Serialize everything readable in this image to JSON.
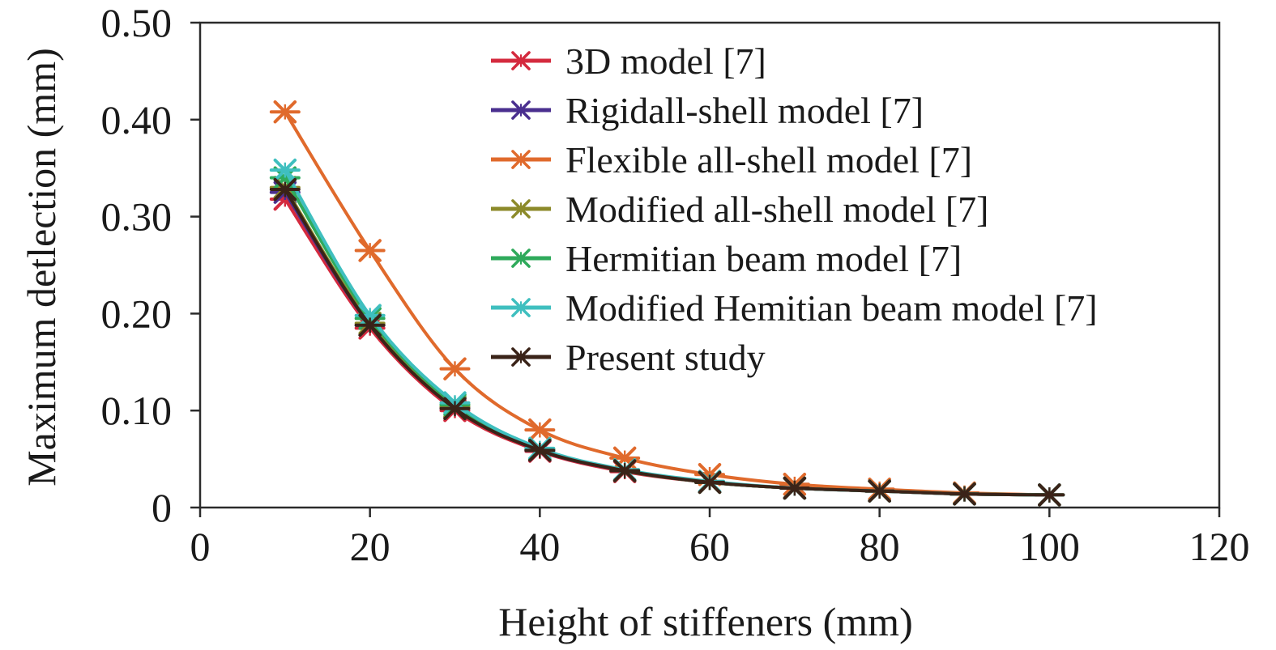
{
  "chart_data": {
    "type": "line",
    "title": "",
    "xlabel": "Height of stiffeners (mm)",
    "ylabel": "Maximum detlection (mm)",
    "xlim": [
      0,
      120
    ],
    "ylim": [
      0,
      0.5
    ],
    "x_ticks": [
      "0",
      "20",
      "40",
      "60",
      "80",
      "100",
      "120"
    ],
    "y_ticks": [
      "0",
      "0.10",
      "0.20",
      "0.30",
      "0.40",
      "0.50"
    ],
    "grid": false,
    "legend_position": "top-right",
    "x": [
      10,
      20,
      30,
      40,
      50,
      60,
      70,
      80,
      90,
      100
    ],
    "series": [
      {
        "name": "3D model [7]",
        "color": "#d42a3e",
        "marker": "asterisk",
        "values": [
          0.318,
          0.185,
          0.1,
          0.058,
          0.037,
          0.026,
          0.02,
          0.017,
          0.014,
          0.013
        ]
      },
      {
        "name": "Rigidall-shell model [7]",
        "color": "#4a2f8f",
        "marker": "asterisk",
        "values": [
          0.325,
          0.188,
          0.103,
          0.059,
          0.038,
          0.026,
          0.02,
          0.017,
          0.014,
          0.013
        ]
      },
      {
        "name": "Flexible all-shell model [7]",
        "color": "#e06a2c",
        "marker": "asterisk",
        "values": [
          0.408,
          0.265,
          0.143,
          0.08,
          0.051,
          0.034,
          0.024,
          0.019,
          0.015,
          0.013
        ]
      },
      {
        "name": "Modified all-shell model [7]",
        "color": "#8c8a2a",
        "marker": "asterisk",
        "values": [
          0.33,
          0.19,
          0.104,
          0.06,
          0.038,
          0.026,
          0.02,
          0.017,
          0.014,
          0.013
        ]
      },
      {
        "name": "Hermitian beam model [7]",
        "color": "#2faa5b",
        "marker": "asterisk",
        "values": [
          0.34,
          0.195,
          0.106,
          0.06,
          0.038,
          0.026,
          0.02,
          0.017,
          0.014,
          0.013
        ]
      },
      {
        "name": "Modified Hemitian beam model [7]",
        "color": "#3fbfbf",
        "marker": "asterisk",
        "values": [
          0.348,
          0.198,
          0.108,
          0.061,
          0.039,
          0.027,
          0.02,
          0.017,
          0.014,
          0.013
        ]
      },
      {
        "name": "Present study",
        "color": "#3a2318",
        "marker": "asterisk",
        "values": [
          0.328,
          0.188,
          0.102,
          0.059,
          0.038,
          0.026,
          0.02,
          0.017,
          0.014,
          0.013
        ]
      }
    ]
  }
}
